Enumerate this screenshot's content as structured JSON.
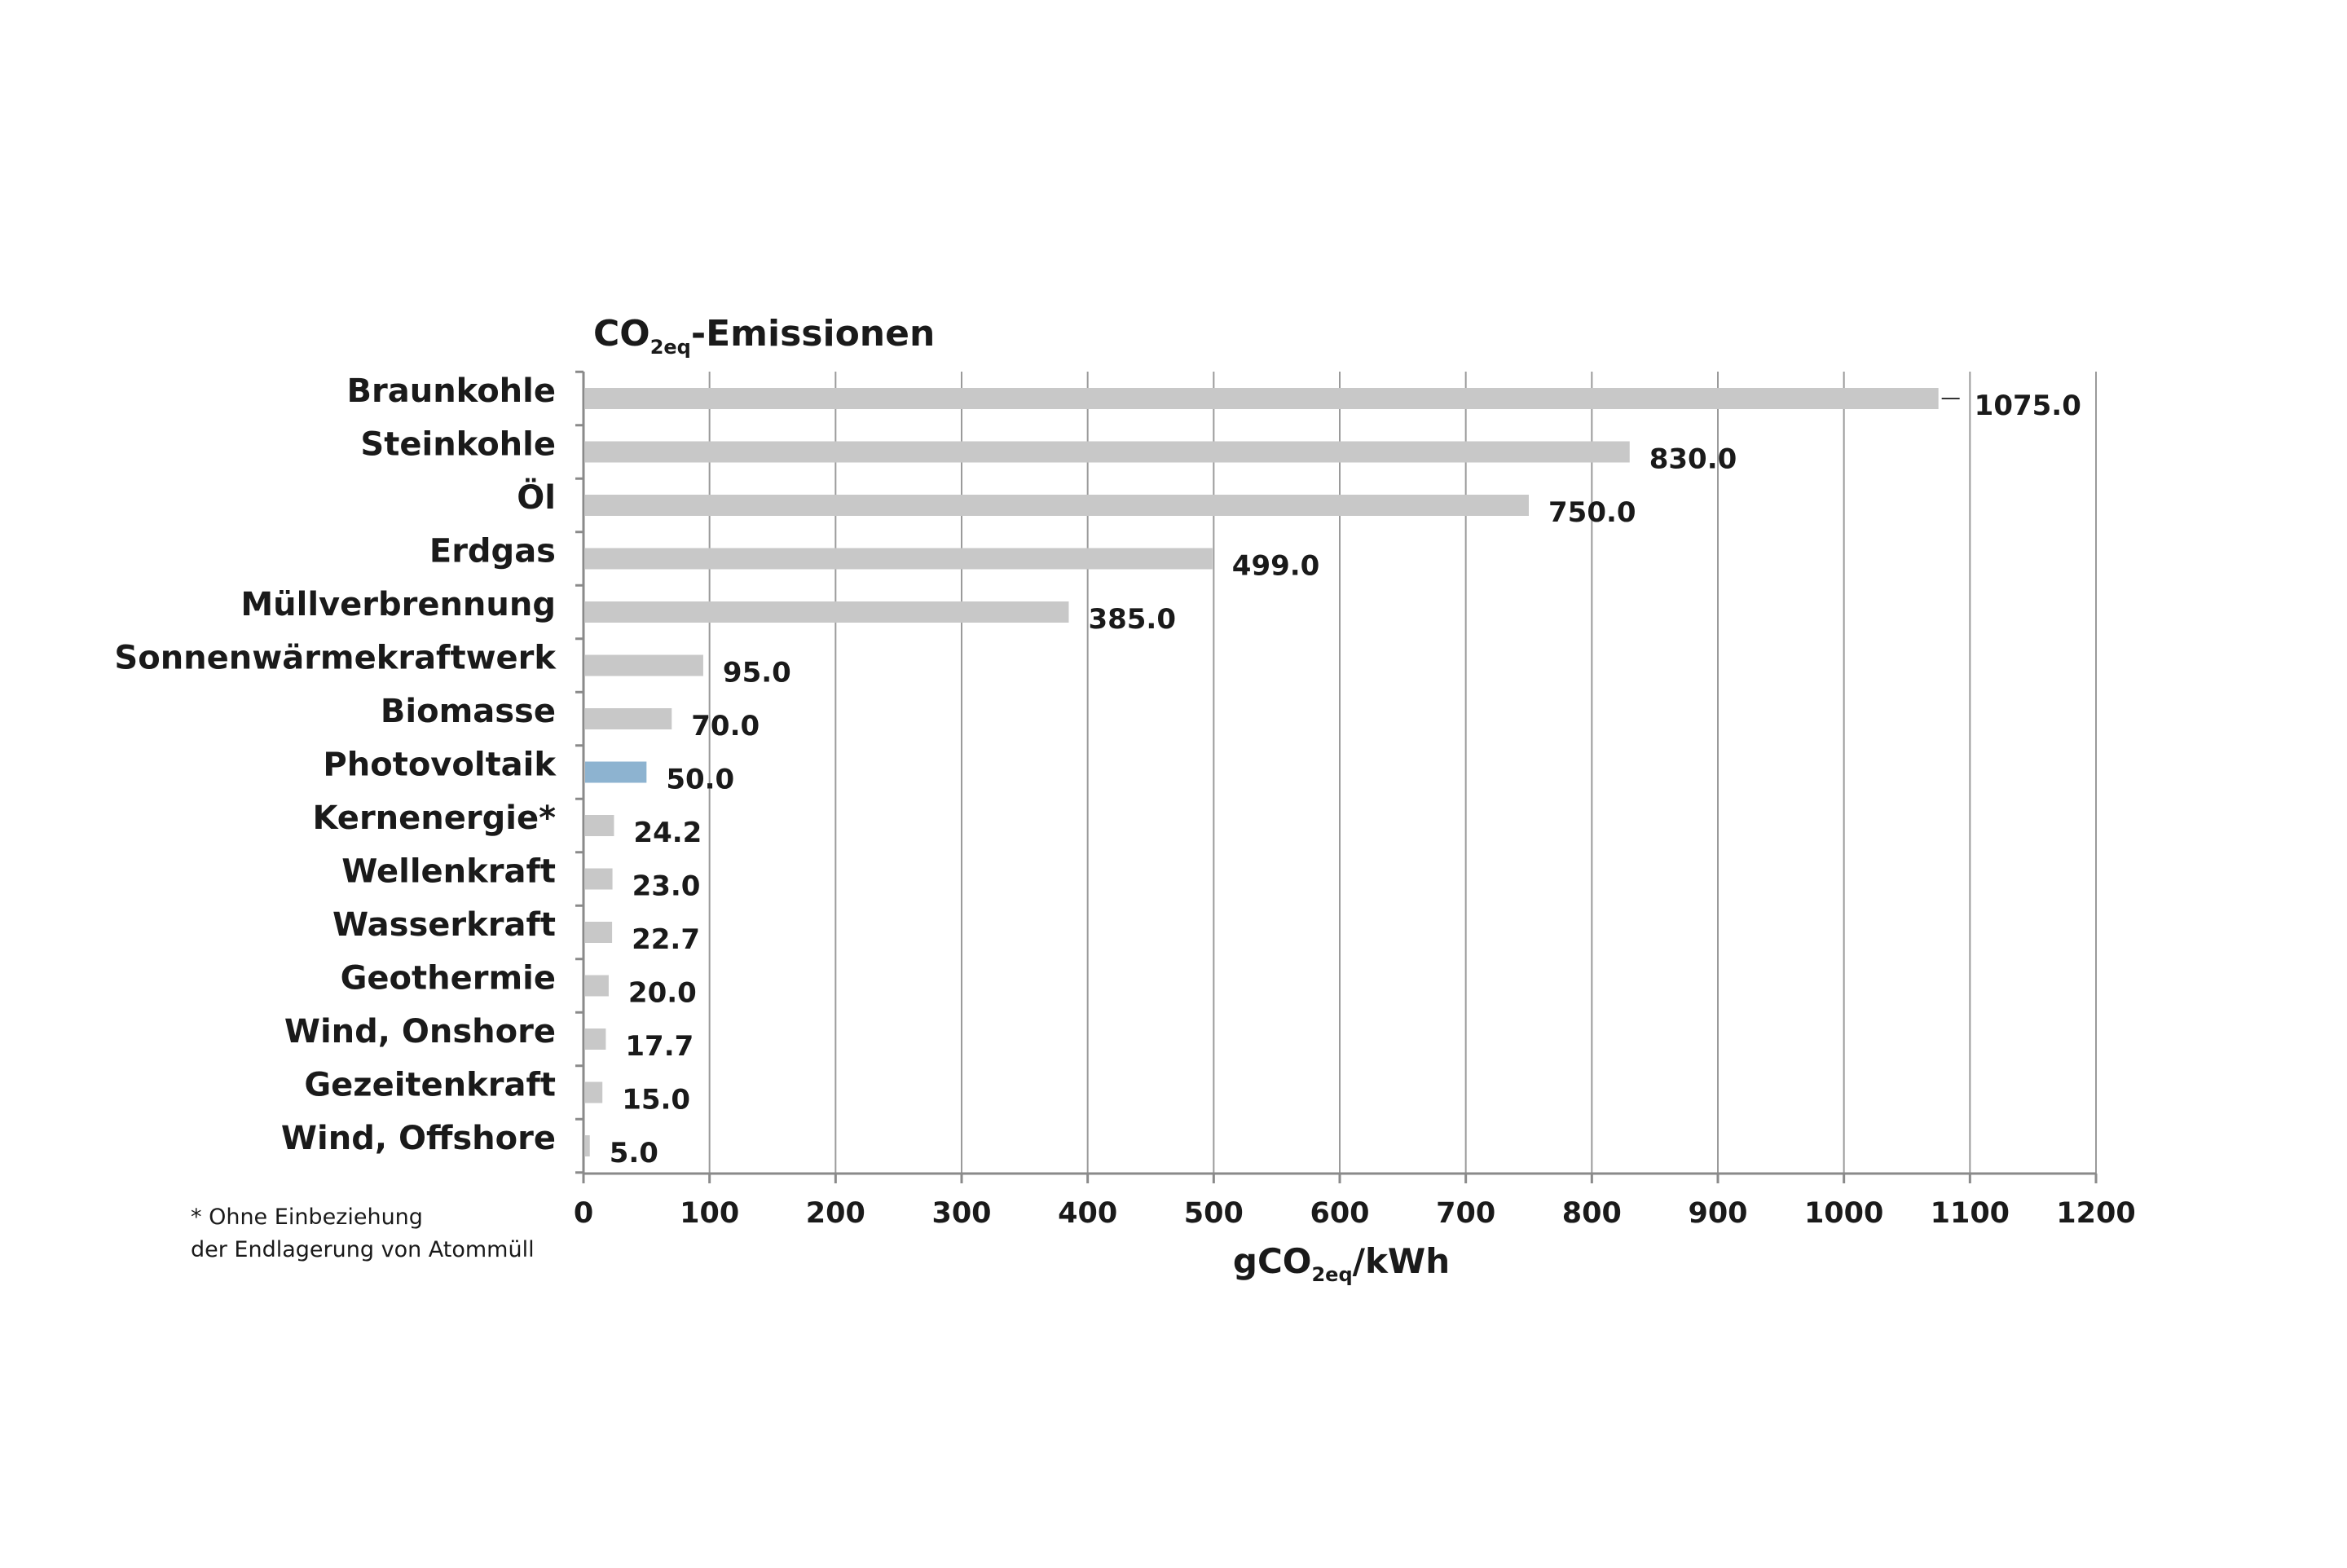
{
  "chart_data": {
    "type": "bar",
    "orientation": "horizontal",
    "title": {
      "main": "CO",
      "sub": "2eq",
      "rest": "-Emissionen"
    },
    "xlabel": {
      "main": "gCO",
      "sub": "2eq",
      "rest": "/kWh"
    },
    "categories": [
      "Braunkohle",
      "Steinkohle",
      "Öl",
      "Erdgas",
      "Müllverbrennung",
      "Sonnenwärmekraftwerk",
      "Biomasse",
      "Photovoltaik",
      "Kernenergie*",
      "Wellenkraft",
      "Wasserkraft",
      "Geothermie",
      "Wind, Onshore",
      "Gezeitenkraft",
      "Wind, Offshore"
    ],
    "values": [
      1075.0,
      830.0,
      750.0,
      499.0,
      385.0,
      95.0,
      70.0,
      50.0,
      24.2,
      23.0,
      22.7,
      20.0,
      17.7,
      15.0,
      5.0
    ],
    "value_labels": [
      "1075.0",
      "830.0",
      "750.0",
      "499.0",
      "385.0",
      "95.0",
      "70.0",
      "50.0",
      "24.2",
      "23.0",
      "22.7",
      "20.0",
      "17.7",
      "15.0",
      "5.0"
    ],
    "highlight": "Photovoltaik",
    "xlim": [
      0,
      1200
    ],
    "xticks": [
      0,
      100,
      200,
      300,
      400,
      500,
      600,
      700,
      800,
      900,
      1000,
      1100,
      1200
    ],
    "xtick_labels": [
      "0",
      "100",
      "200",
      "300",
      "400",
      "500",
      "600",
      "700",
      "800",
      "900",
      "1000",
      "1100",
      "1200"
    ],
    "grid": "vertical",
    "colors": {
      "bar": "#c8c8c8",
      "highlight": "#8db3d0"
    }
  },
  "footnote": {
    "line1": "* Ohne Einbeziehung",
    "line2": "der Endlagerung von Atommüll"
  }
}
